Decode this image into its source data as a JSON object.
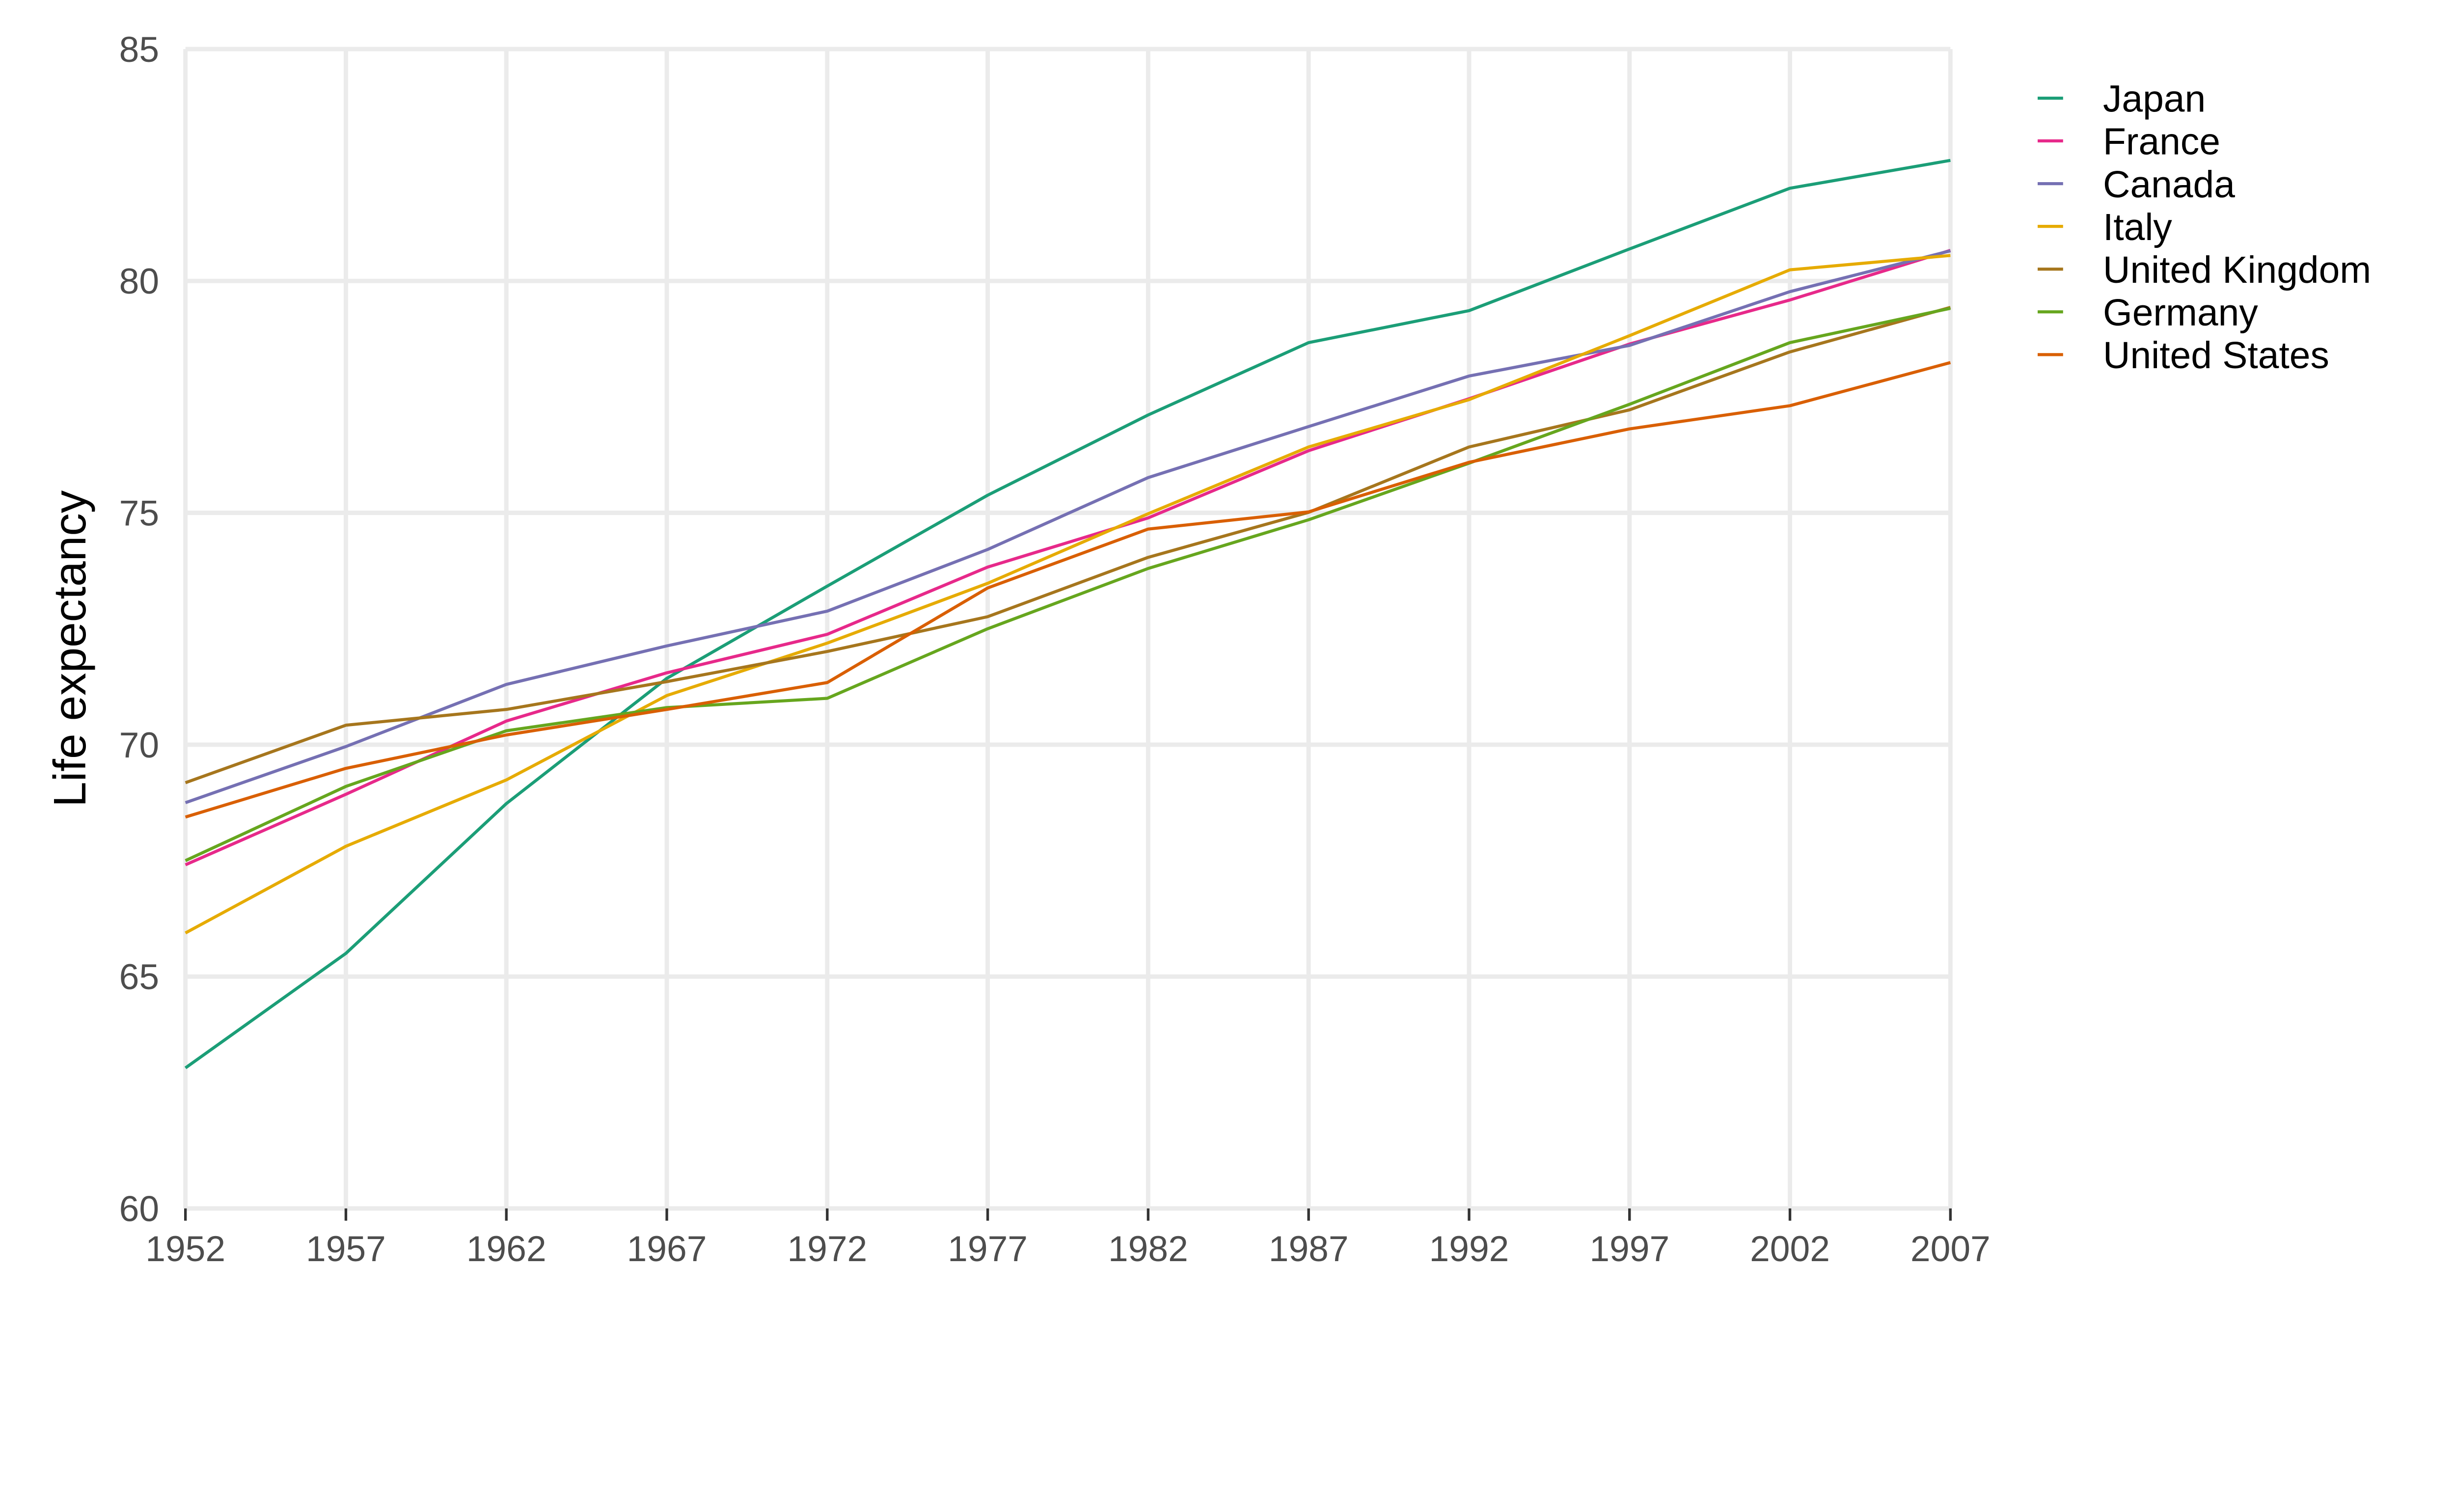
{
  "chart_data": {
    "type": "line",
    "title": "",
    "xlabel": "",
    "ylabel": "Life expectancy",
    "xlim": [
      1952,
      2007
    ],
    "ylim": [
      60,
      85
    ],
    "grid": true,
    "legend_position": "right",
    "x": [
      1952,
      1957,
      1962,
      1967,
      1972,
      1977,
      1982,
      1987,
      1992,
      1997,
      2002,
      2007
    ],
    "x_ticks": [
      "1952",
      "1957",
      "1962",
      "1967",
      "1972",
      "1977",
      "1982",
      "1987",
      "1992",
      "1997",
      "2002",
      "2007"
    ],
    "y_ticks": [
      "60",
      "65",
      "70",
      "75",
      "80",
      "85"
    ],
    "series": [
      {
        "name": "Japan",
        "color": "#1B9E77",
        "values": [
          63.03,
          65.5,
          68.73,
          71.43,
          73.42,
          75.38,
          77.11,
          78.67,
          79.36,
          80.69,
          82.0,
          82.6
        ]
      },
      {
        "name": "France",
        "color": "#E7298A",
        "values": [
          67.41,
          68.93,
          70.51,
          71.55,
          72.38,
          73.83,
          74.89,
          76.34,
          77.46,
          78.64,
          79.59,
          80.66
        ]
      },
      {
        "name": "Canada",
        "color": "#7570B3",
        "values": [
          68.75,
          69.96,
          71.3,
          72.13,
          72.88,
          74.21,
          75.76,
          76.86,
          77.95,
          78.61,
          79.77,
          80.65
        ]
      },
      {
        "name": "Italy",
        "color": "#E6AB02",
        "values": [
          65.94,
          67.81,
          69.24,
          71.06,
          72.19,
          73.48,
          74.98,
          76.42,
          77.44,
          78.82,
          80.24,
          80.55
        ]
      },
      {
        "name": "United Kingdom",
        "color": "#A6761D",
        "values": [
          69.18,
          70.42,
          70.76,
          71.36,
          72.01,
          72.76,
          74.04,
          75.01,
          76.42,
          77.22,
          78.47,
          79.43
        ]
      },
      {
        "name": "Germany",
        "color": "#66A61E",
        "values": [
          67.5,
          69.1,
          70.3,
          70.8,
          71.0,
          72.5,
          73.8,
          74.85,
          76.07,
          77.34,
          78.67,
          79.41
        ]
      },
      {
        "name": "United States",
        "color": "#D95F02",
        "values": [
          68.44,
          69.49,
          70.21,
          70.76,
          71.34,
          73.38,
          74.65,
          75.02,
          76.09,
          76.81,
          77.31,
          78.24
        ]
      }
    ]
  }
}
